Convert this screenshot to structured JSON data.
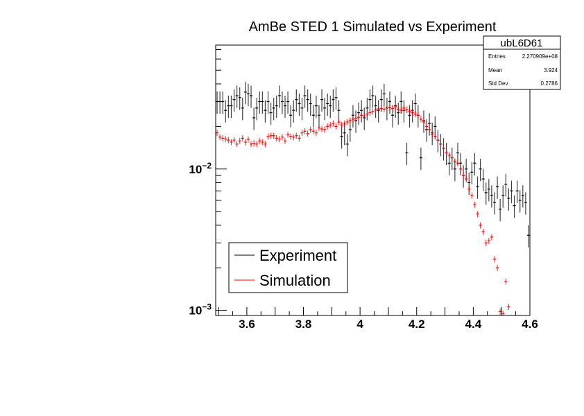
{
  "chart_data": {
    "type": "scatter",
    "title": "AmBe STED 1 Simulated vs Experiment",
    "xlabel": "",
    "ylabel": "",
    "xlim": [
      3.49,
      4.6
    ],
    "ylim": [
      0.00092,
      0.0753
    ],
    "y_scale": "log",
    "grid": false,
    "bin_width": 0.01,
    "x_start": 3.495,
    "x_tick_labels": [
      "3.6",
      "3.8",
      "4",
      "4.2",
      "4.4",
      "4.6"
    ],
    "x_tick_values": [
      3.6,
      3.8,
      4.0,
      4.2,
      4.4,
      4.6
    ],
    "y_tick_labels": [
      {
        "base": "10",
        "exp": "−2",
        "value": 0.01
      },
      {
        "base": "10",
        "exp": "−3",
        "value": 0.001
      }
    ],
    "legend": {
      "placement": "bottom-left",
      "entries": [
        {
          "label": "Experiment",
          "color": "#000000"
        },
        {
          "label": "Simulation",
          "color": "#ff0000"
        }
      ]
    },
    "stats_box": {
      "title": "ubL6D61",
      "rows": [
        {
          "label": "Entries",
          "value": "2.270909e+08"
        },
        {
          "label": "Mean",
          "value": "3.924"
        },
        {
          "label": "Std Dev",
          "value": "0.2786"
        }
      ]
    },
    "series": [
      {
        "name": "Experiment",
        "color": "#000000",
        "rel_err": 0.18,
        "values": [
          0.03,
          0.03,
          0.03,
          0.026,
          0.028,
          0.028,
          0.031,
          0.033,
          0.032,
          0.027,
          0.035,
          0.034,
          0.033,
          0.023,
          0.027,
          0.03,
          0.03,
          0.026,
          0.03,
          0.025,
          0.027,
          0.028,
          0.033,
          0.03,
          0.028,
          0.03,
          0.024,
          0.026,
          0.031,
          0.029,
          0.027,
          0.033,
          0.031,
          0.029,
          0.024,
          0.028,
          0.024,
          0.031,
          0.027,
          0.029,
          0.028,
          0.031,
          0.032,
          0.026,
          0.017,
          0.018,
          0.015,
          0.019,
          0.024,
          0.022,
          0.025,
          0.026,
          0.023,
          0.027,
          0.031,
          0.033,
          0.028,
          0.026,
          0.031,
          0.034,
          0.027,
          0.03,
          0.024,
          0.028,
          0.025,
          0.03,
          0.026,
          0.013,
          0.024,
          0.026,
          0.029,
          0.024,
          0.012,
          0.022,
          0.019,
          0.021,
          0.018,
          0.02,
          0.016,
          0.015,
          0.014,
          0.013,
          0.011,
          0.012,
          0.01,
          0.013,
          0.011,
          0.009,
          0.01,
          0.008,
          0.0095,
          0.011,
          0.0075,
          0.01,
          0.0085,
          0.0068,
          0.0072,
          0.0065,
          0.0058,
          0.0075,
          0.0052,
          0.0065,
          0.0078,
          0.0062,
          0.007,
          0.0055,
          0.007,
          0.006,
          0.0065,
          0.0058,
          0.0034
        ]
      },
      {
        "name": "Simulation",
        "color": "#ff0000",
        "rel_err": 0.05,
        "values": [
          0.018,
          0.0168,
          0.0165,
          0.0163,
          0.016,
          0.0155,
          0.016,
          0.015,
          0.0158,
          0.0165,
          0.0155,
          0.0162,
          0.015,
          0.0152,
          0.015,
          0.0158,
          0.0155,
          0.015,
          0.017,
          0.0172,
          0.0172,
          0.0165,
          0.0163,
          0.0168,
          0.0158,
          0.0175,
          0.017,
          0.0168,
          0.0172,
          0.0165,
          0.018,
          0.0185,
          0.0178,
          0.019,
          0.0185,
          0.018,
          0.0195,
          0.0192,
          0.019,
          0.02,
          0.0205,
          0.021,
          0.02,
          0.0215,
          0.0205,
          0.021,
          0.0215,
          0.022,
          0.0225,
          0.0228,
          0.0232,
          0.024,
          0.0238,
          0.0245,
          0.025,
          0.0255,
          0.0262,
          0.0266,
          0.0268,
          0.0265,
          0.027,
          0.0272,
          0.0268,
          0.0275,
          0.0265,
          0.026,
          0.027,
          0.0262,
          0.0255,
          0.025,
          0.0245,
          0.024,
          0.0225,
          0.0215,
          0.02,
          0.019,
          0.0175,
          0.017,
          0.016,
          0.015,
          0.014,
          0.013,
          0.0125,
          0.012,
          0.0113,
          0.011,
          0.01,
          0.009,
          0.0085,
          0.0072,
          0.0065,
          0.0056,
          0.0048,
          0.004,
          0.0036,
          0.003,
          0.0031,
          0.0033,
          0.0023,
          0.002,
          0.00098,
          0.00095,
          0.0016,
          0.00106,
          null,
          null,
          null,
          null,
          null,
          null,
          null
        ]
      }
    ]
  }
}
